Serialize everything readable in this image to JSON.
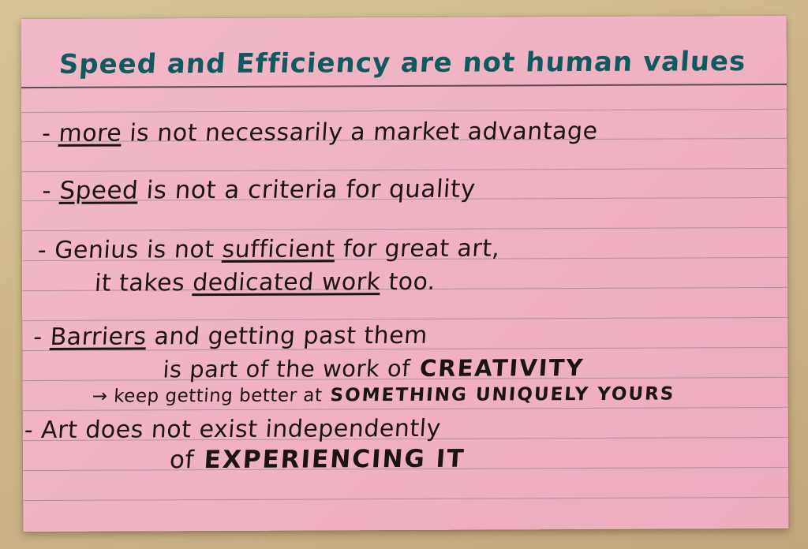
{
  "title": "Speed and Efficiency are not human values",
  "lines": [
    {
      "bullet": "-",
      "underlined": "more",
      "rest": " is not necessarily a market advantage"
    },
    {
      "bullet": "-",
      "underlined": "Speed",
      "rest": " is not a criteria for quality"
    },
    {
      "bullet": "-",
      "pre": "Genius is not ",
      "underlined": "sufficient",
      "rest": " for great art,"
    },
    {
      "continuation": "it takes ",
      "underlined": "dedicated work",
      "rest": " too."
    },
    {
      "bullet": "-",
      "underlined": "Barriers",
      "rest": " and getting past them"
    },
    {
      "continuation": "is part of the work of",
      "caps": " CREATIVITY"
    },
    {
      "arrow": "→",
      "text": "keep getting better at",
      "caps": " SOMETHING UNIQUELY YOURS"
    },
    {
      "bullet": "-",
      "text": "Art does not exist independently"
    },
    {
      "continuation": "of",
      "caps": " EXPERIENCING IT"
    }
  ],
  "colors": {
    "card": "#f0b2c3",
    "ink": "#1c1414",
    "title_ink": "#0f5a5e",
    "lines": "#9d8b9a",
    "desk": "#cdb78a"
  }
}
